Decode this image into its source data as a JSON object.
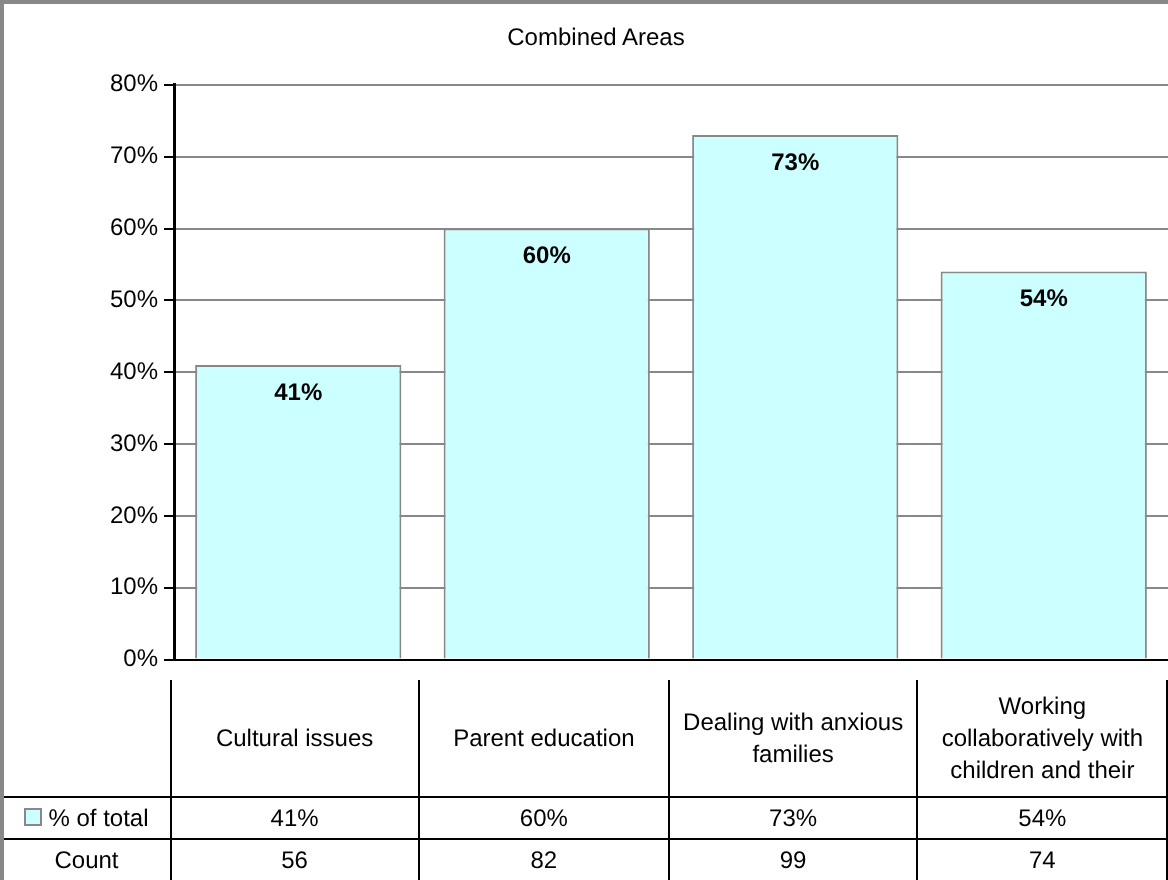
{
  "chart_data": {
    "type": "bar",
    "title": "Combined Areas",
    "categories": [
      "Cultural issues",
      "Parent education",
      "Dealing with anxious families",
      "Working collaboratively with children and their"
    ],
    "series": [
      {
        "name": "% of total",
        "color": "#ccffff",
        "values": [
          41,
          60,
          73,
          54
        ],
        "value_labels": [
          "41%",
          "60%",
          "73%",
          "54%"
        ]
      }
    ],
    "annotations": [
      "Count",
      "56",
      "82",
      "99",
      "74"
    ],
    "ylim": [
      0,
      80
    ],
    "yticks": [
      {
        "value": 0,
        "label": "0%"
      },
      {
        "value": 10,
        "label": "10%"
      },
      {
        "value": 20,
        "label": "20%"
      },
      {
        "value": 30,
        "label": "30%"
      },
      {
        "value": 40,
        "label": "40%"
      },
      {
        "value": 50,
        "label": "50%"
      },
      {
        "value": 60,
        "label": "60%"
      },
      {
        "value": 70,
        "label": "70%"
      },
      {
        "value": 80,
        "label": "80%"
      }
    ],
    "grid": "y",
    "data_labels": true
  }
}
